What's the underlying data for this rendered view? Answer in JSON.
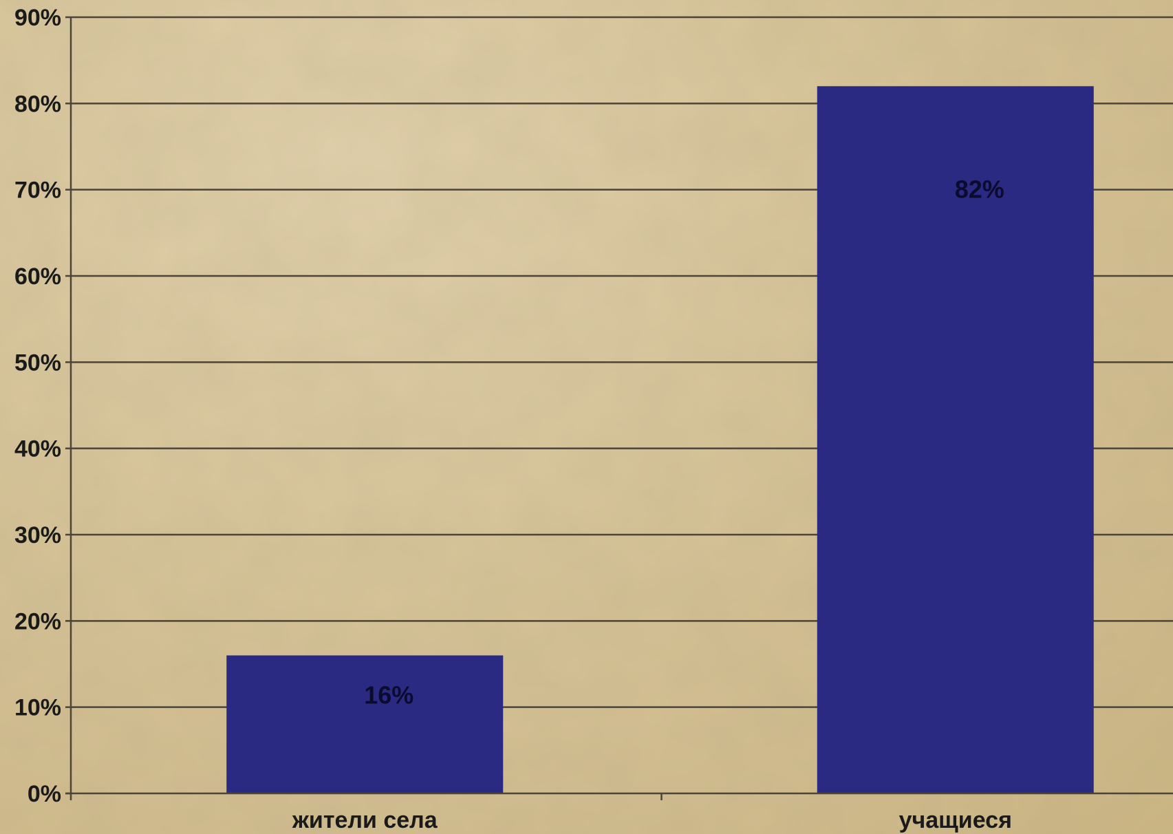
{
  "chart_data": {
    "type": "bar",
    "categories": [
      "жители села",
      "учащиеся"
    ],
    "values": [
      16,
      82
    ],
    "data_labels": [
      "16%",
      "82%"
    ],
    "y_ticks": [
      "0%",
      "10%",
      "20%",
      "30%",
      "40%",
      "50%",
      "60%",
      "70%",
      "80%",
      "90%"
    ],
    "ylim": [
      0,
      90
    ],
    "title": "",
    "xlabel": "",
    "ylabel": "",
    "grid": true,
    "legend": "none"
  },
  "colors": {
    "bar": "#2b2a82",
    "grid": "#4a4536",
    "axis": "#4a4536",
    "background": "#d6c398"
  }
}
